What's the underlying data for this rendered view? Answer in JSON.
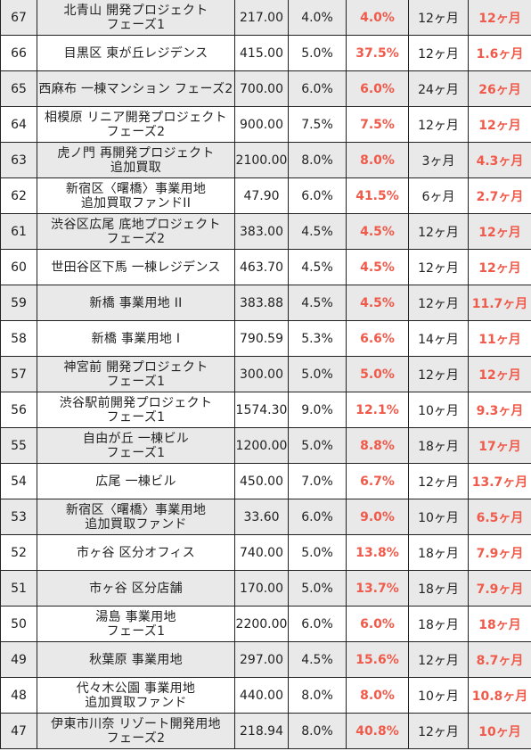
{
  "accent_color": "#f05a4a",
  "rows": [
    {
      "no": "67",
      "name": [
        "北青山 開発プロジェクト",
        "フェーズ1"
      ],
      "amount": "217.00",
      "yield": "4.0%",
      "actual_yield": "4.0%",
      "period": "12ヶ月",
      "actual_period": "12ヶ月"
    },
    {
      "no": "66",
      "name": [
        "目黒区 東が丘レジデンス"
      ],
      "amount": "415.00",
      "yield": "5.0%",
      "actual_yield": "37.5%",
      "period": "12ヶ月",
      "actual_period": "1.6ヶ月"
    },
    {
      "no": "65",
      "name": [
        "西麻布 一棟マンション フェーズ2"
      ],
      "amount": "700.00",
      "yield": "6.0%",
      "actual_yield": "6.0%",
      "period": "24ヶ月",
      "actual_period": "26ヶ月"
    },
    {
      "no": "64",
      "name": [
        "相模原 リニア開発プロジェクト",
        "フェーズ2"
      ],
      "amount": "900.00",
      "yield": "7.5%",
      "actual_yield": "7.5%",
      "period": "12ヶ月",
      "actual_period": "12ヶ月"
    },
    {
      "no": "63",
      "name": [
        "虎ノ門 再開発プロジェクト",
        "追加買取"
      ],
      "amount": "2100.00",
      "yield": "8.0%",
      "actual_yield": "8.0%",
      "period": "3ヶ月",
      "actual_period": "4.3ヶ月"
    },
    {
      "no": "62",
      "name": [
        "新宿区〈曙橋〉事業用地",
        "追加買取ファンドII"
      ],
      "amount": "47.90",
      "yield": "6.0%",
      "actual_yield": "41.5%",
      "period": "6ヶ月",
      "actual_period": "2.7ヶ月"
    },
    {
      "no": "61",
      "name": [
        "渋谷区広尾 底地プロジェクト",
        "フェーズ2"
      ],
      "amount": "383.00",
      "yield": "4.5%",
      "actual_yield": "4.5%",
      "period": "12ヶ月",
      "actual_period": "12ヶ月"
    },
    {
      "no": "60",
      "name": [
        "世田谷区下馬 一棟レジデンス"
      ],
      "amount": "463.70",
      "yield": "4.5%",
      "actual_yield": "4.5%",
      "period": "12ヶ月",
      "actual_period": "12ヶ月"
    },
    {
      "no": "59",
      "name": [
        "新橋 事業用地 II"
      ],
      "amount": "383.88",
      "yield": "4.5%",
      "actual_yield": "4.5%",
      "period": "12ヶ月",
      "actual_period": "11.7ヶ月"
    },
    {
      "no": "58",
      "name": [
        "新橋 事業用地 I"
      ],
      "amount": "790.59",
      "yield": "5.3%",
      "actual_yield": "6.6%",
      "period": "14ヶ月",
      "actual_period": "11ヶ月"
    },
    {
      "no": "57",
      "name": [
        "神宮前 開発プロジェクト",
        "フェーズ1"
      ],
      "amount": "300.00",
      "yield": "5.0%",
      "actual_yield": "5.0%",
      "period": "12ヶ月",
      "actual_period": "12ヶ月"
    },
    {
      "no": "56",
      "name": [
        "渋谷駅前開発プロジェクト",
        "フェーズ1"
      ],
      "amount": "1574.30",
      "yield": "9.0%",
      "actual_yield": "12.1%",
      "period": "10ヶ月",
      "actual_period": "9.3ヶ月"
    },
    {
      "no": "55",
      "name": [
        "自由が丘 一棟ビル",
        "フェーズ1"
      ],
      "amount": "1200.00",
      "yield": "5.0%",
      "actual_yield": "8.8%",
      "period": "18ヶ月",
      "actual_period": "17ヶ月"
    },
    {
      "no": "54",
      "name": [
        "広尾 一棟ビル"
      ],
      "amount": "450.00",
      "yield": "7.0%",
      "actual_yield": "6.7%",
      "period": "12ヶ月",
      "actual_period": "13.7ヶ月"
    },
    {
      "no": "53",
      "name": [
        "新宿区〈曙橋〉事業用地",
        "追加買取ファンド"
      ],
      "amount": "33.60",
      "yield": "6.0%",
      "actual_yield": "9.0%",
      "period": "10ヶ月",
      "actual_period": "6.5ヶ月"
    },
    {
      "no": "52",
      "name": [
        "市ヶ谷 区分オフィス"
      ],
      "amount": "740.00",
      "yield": "5.0%",
      "actual_yield": "13.8%",
      "period": "18ヶ月",
      "actual_period": "7.9ヶ月"
    },
    {
      "no": "51",
      "name": [
        "市ヶ谷 区分店舗"
      ],
      "amount": "170.00",
      "yield": "5.0%",
      "actual_yield": "13.7%",
      "period": "18ヶ月",
      "actual_period": "7.9ヶ月"
    },
    {
      "no": "50",
      "name": [
        "湯島 事業用地",
        "フェーズ1"
      ],
      "amount": "2200.00",
      "yield": "6.0%",
      "actual_yield": "6.0%",
      "period": "18ヶ月",
      "actual_period": "18ヶ月"
    },
    {
      "no": "49",
      "name": [
        "秋葉原 事業用地"
      ],
      "amount": "297.00",
      "yield": "4.5%",
      "actual_yield": "15.6%",
      "period": "12ヶ月",
      "actual_period": "8.7ヶ月"
    },
    {
      "no": "48",
      "name": [
        "代々木公園 事業用地",
        "追加買取ファンド"
      ],
      "amount": "440.00",
      "yield": "8.0%",
      "actual_yield": "8.0%",
      "period": "10ヶ月",
      "actual_period": "10.8ヶ月"
    },
    {
      "no": "47",
      "name": [
        "伊東市川奈 リゾート開発用地",
        "フェーズ2"
      ],
      "amount": "218.94",
      "yield": "8.0%",
      "actual_yield": "40.8%",
      "period": "12ヶ月",
      "actual_period": "10ヶ月"
    }
  ]
}
